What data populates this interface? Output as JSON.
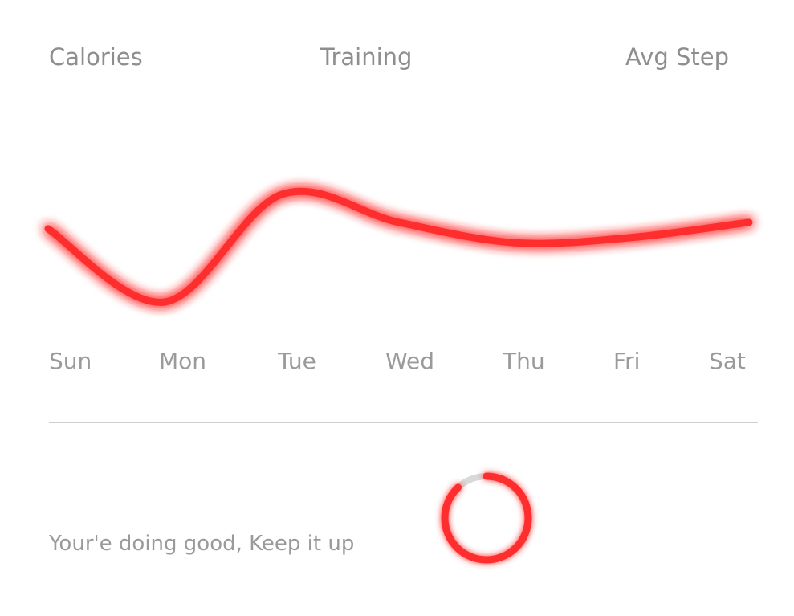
{
  "tabs": [
    {
      "label": "Calories"
    },
    {
      "label": "Training"
    },
    {
      "label": "Avg Step"
    }
  ],
  "chart_data": {
    "type": "line",
    "categories": [
      "Sun",
      "Mon",
      "Tue",
      "Wed",
      "Thu",
      "Fri",
      "Sat"
    ],
    "series": [
      {
        "values": [
          0.68,
          0.0,
          1.0,
          0.74,
          0.55,
          0.6,
          0.74
        ]
      }
    ],
    "line_color": "#ff2e2e",
    "grid": false
  },
  "divider": true,
  "progress": {
    "message": "Your'e doing good, Keep it up",
    "fraction": 0.88,
    "color": "#ff2e2e",
    "track_color": "#d9d9d9"
  }
}
